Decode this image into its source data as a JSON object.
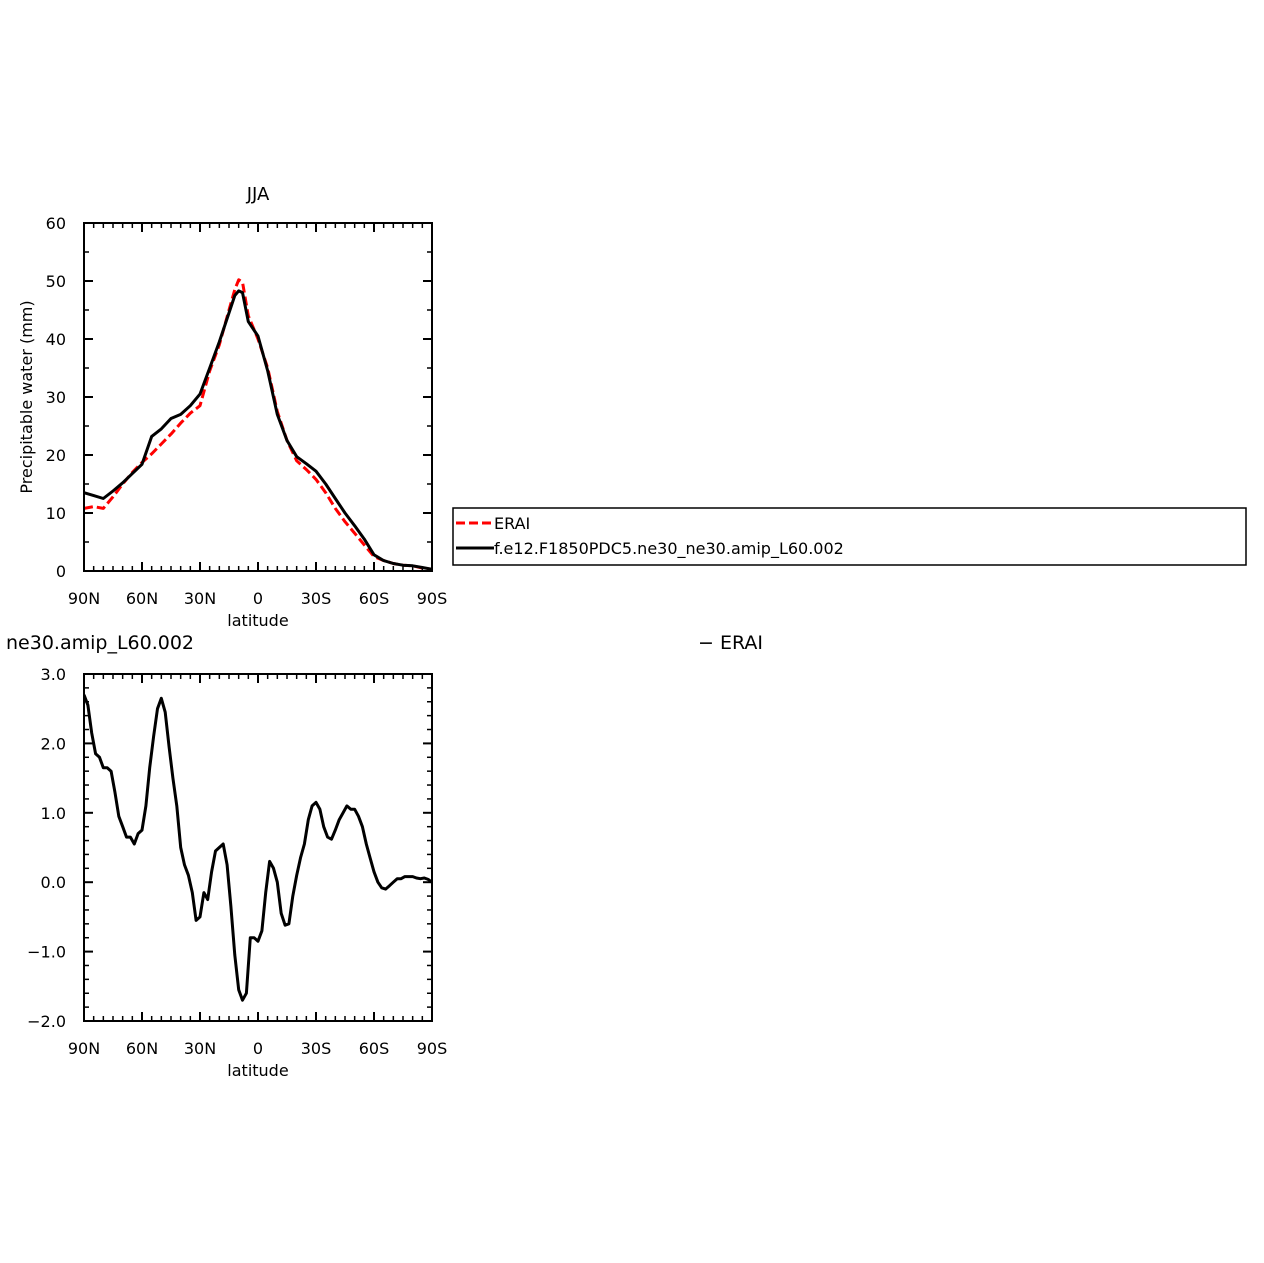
{
  "chart_data": [
    {
      "type": "line",
      "title": "JJA",
      "xlabel": "latitude",
      "ylabel": "Precipitable water (mm)",
      "xlim": [
        90,
        -90
      ],
      "ylim": [
        0,
        60
      ],
      "xticks": [
        90,
        60,
        30,
        0,
        -30,
        -60,
        -90
      ],
      "xtick_labels": [
        "90N",
        "60N",
        "30N",
        "0",
        "30S",
        "60S",
        "90S"
      ],
      "yticks": [
        0,
        10,
        20,
        30,
        40,
        50,
        60
      ],
      "ytick_labels": [
        "0",
        "10",
        "20",
        "30",
        "40",
        "50",
        "60"
      ],
      "series": [
        {
          "name": "ERAI",
          "color": "#ff0000",
          "dash": true,
          "x": [
            90,
            85,
            80,
            75,
            70,
            65,
            60,
            55,
            50,
            45,
            40,
            35,
            30,
            25,
            20,
            15,
            12,
            10,
            8,
            5,
            0,
            -5,
            -10,
            -15,
            -20,
            -25,
            -30,
            -35,
            -40,
            -45,
            -50,
            -55,
            -60,
            -65,
            -70,
            -75,
            -80,
            -85,
            -90
          ],
          "y": [
            10.8,
            11.1,
            10.8,
            12.8,
            15.0,
            17.0,
            18.7,
            20.2,
            21.9,
            23.6,
            25.5,
            27.2,
            28.5,
            34.5,
            39.0,
            45.0,
            48.5,
            50.2,
            49.8,
            44.0,
            40.0,
            35.0,
            27.5,
            22.5,
            19.0,
            17.5,
            15.8,
            13.5,
            10.8,
            8.5,
            6.5,
            4.5,
            2.5,
            1.8,
            1.3,
            1.0,
            0.9,
            0.5,
            0.3
          ]
        },
        {
          "name": "f.e12.F1850PDC5.ne30_ne30.amip_L60.002",
          "color": "#000000",
          "dash": false,
          "x": [
            90,
            85,
            80,
            75,
            70,
            65,
            60,
            55,
            50,
            45,
            40,
            35,
            30,
            25,
            20,
            15,
            12,
            10,
            8,
            5,
            0,
            -5,
            -10,
            -15,
            -20,
            -25,
            -30,
            -35,
            -40,
            -45,
            -50,
            -55,
            -60,
            -65,
            -70,
            -75,
            -80,
            -85,
            -90
          ],
          "y": [
            13.5,
            13.0,
            12.5,
            13.8,
            15.2,
            16.8,
            18.4,
            23.2,
            24.5,
            26.3,
            27.0,
            28.5,
            30.5,
            35.0,
            39.5,
            44.5,
            47.5,
            48.3,
            48.0,
            43.0,
            40.5,
            34.5,
            27.0,
            22.5,
            19.7,
            18.5,
            17.2,
            15.0,
            12.5,
            10.0,
            7.8,
            5.5,
            2.8,
            1.8,
            1.3,
            1.0,
            0.9,
            0.6,
            0.3
          ]
        }
      ],
      "legend": "right"
    },
    {
      "type": "line",
      "title": "ne30.amip_L60.002",
      "title_right": "− ERAI",
      "xlabel": "latitude",
      "ylabel": "Precipitable water (mm)",
      "xlim": [
        90,
        -90
      ],
      "ylim": [
        -2.0,
        3.0
      ],
      "xticks": [
        90,
        60,
        30,
        0,
        -30,
        -60,
        -90
      ],
      "xtick_labels": [
        "90N",
        "60N",
        "30N",
        "0",
        "30S",
        "60S",
        "90S"
      ],
      "yticks": [
        -2,
        -1,
        0,
        1,
        2,
        3
      ],
      "ytick_labels": [
        "−2.0",
        "−1.0",
        "0.0",
        "1.0",
        "2.0",
        "3.0"
      ],
      "series": [
        {
          "name": "",
          "color": "#000000",
          "dash": false,
          "x": [
            90,
            88,
            86,
            84,
            82,
            80,
            78,
            76,
            74,
            72,
            70,
            68,
            66,
            64,
            62,
            60,
            58,
            56,
            54,
            52,
            50,
            48,
            46,
            44,
            42,
            40,
            38,
            36,
            34,
            32,
            30,
            28,
            26,
            24,
            22,
            20,
            18,
            16,
            14,
            12,
            10,
            8,
            6,
            4,
            2,
            0,
            -2,
            -4,
            -6,
            -8,
            -10,
            -12,
            -14,
            -16,
            -18,
            -20,
            -22,
            -24,
            -26,
            -28,
            -30,
            -32,
            -34,
            -36,
            -38,
            -40,
            -42,
            -44,
            -46,
            -48,
            -50,
            -52,
            -54,
            -56,
            -58,
            -60,
            -62,
            -64,
            -66,
            -68,
            -70,
            -72,
            -74,
            -76,
            -78,
            -80,
            -82,
            -84,
            -86,
            -88,
            -90
          ],
          "y": [
            2.7,
            2.55,
            2.15,
            1.85,
            1.8,
            1.65,
            1.65,
            1.6,
            1.3,
            0.95,
            0.8,
            0.65,
            0.65,
            0.55,
            0.7,
            0.75,
            1.1,
            1.65,
            2.1,
            2.5,
            2.65,
            2.45,
            1.95,
            1.5,
            1.1,
            0.5,
            0.25,
            0.1,
            -0.15,
            -0.55,
            -0.5,
            -0.15,
            -0.25,
            0.15,
            0.45,
            0.5,
            0.55,
            0.25,
            -0.35,
            -1.05,
            -1.55,
            -1.7,
            -1.6,
            -0.8,
            -0.8,
            -0.85,
            -0.7,
            -0.15,
            0.3,
            0.2,
            0.0,
            -0.45,
            -0.62,
            -0.6,
            -0.2,
            0.1,
            0.35,
            0.55,
            0.9,
            1.1,
            1.15,
            1.05,
            0.8,
            0.65,
            0.62,
            0.75,
            0.9,
            1.0,
            1.1,
            1.05,
            1.05,
            0.95,
            0.8,
            0.55,
            0.35,
            0.15,
            0.0,
            -0.08,
            -0.1,
            -0.05,
            0.0,
            0.05,
            0.05,
            0.08,
            0.08,
            0.08,
            0.06,
            0.05,
            0.06,
            0.04,
            0.0
          ]
        }
      ]
    }
  ]
}
